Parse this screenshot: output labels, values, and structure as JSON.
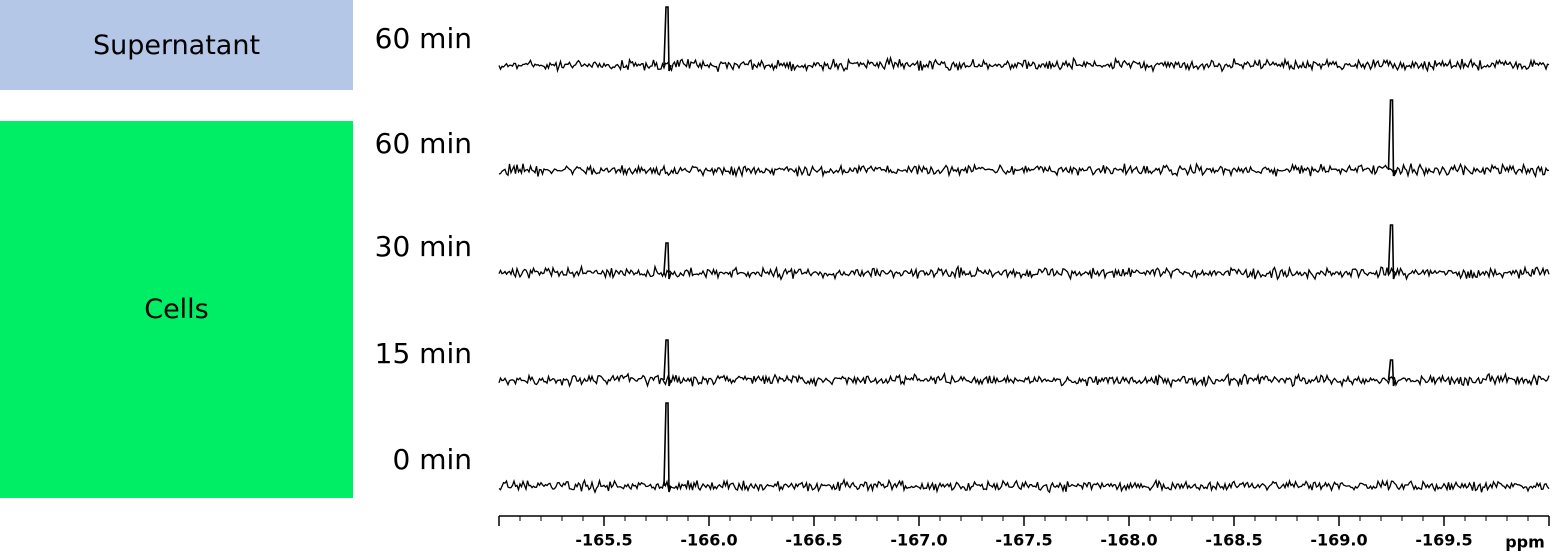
{
  "panels": [
    {
      "label": "Supernatant"
    },
    {
      "label": "Cells"
    }
  ],
  "chart_data": {
    "type": "stacked-spectra",
    "xlabel": "ppm",
    "xlim": [
      -165.0,
      -170.0
    ],
    "xticks": [
      -165.5,
      {
        "value": -166.0,
        "label": "-166.0"
      },
      -166.5,
      {
        "value": -167.0,
        "label": "-167.0"
      },
      -167.5,
      {
        "value": -168.0,
        "label": "-168.0"
      },
      -168.5,
      {
        "value": -169.0,
        "label": "-169.0"
      },
      -169.5
    ],
    "minor_tick_step": 0.1,
    "color": "#000000",
    "series": [
      {
        "name": "60 min",
        "peak_ppm": [
          -165.8
        ],
        "peak_heights": [
          58
        ]
      },
      {
        "name": "60 min",
        "peak_ppm": [
          -169.25
        ],
        "peak_heights": [
          70
        ]
      },
      {
        "name": "30 min",
        "peak_ppm": [
          -165.8,
          -169.25
        ],
        "peak_heights": [
          30,
          48
        ]
      },
      {
        "name": "15 min",
        "peak_ppm": [
          -165.8,
          -169.25
        ],
        "peak_heights": [
          40,
          20
        ]
      },
      {
        "name": "0 min",
        "peak_ppm": [
          -165.8
        ],
        "peak_heights": [
          83
        ]
      }
    ]
  }
}
